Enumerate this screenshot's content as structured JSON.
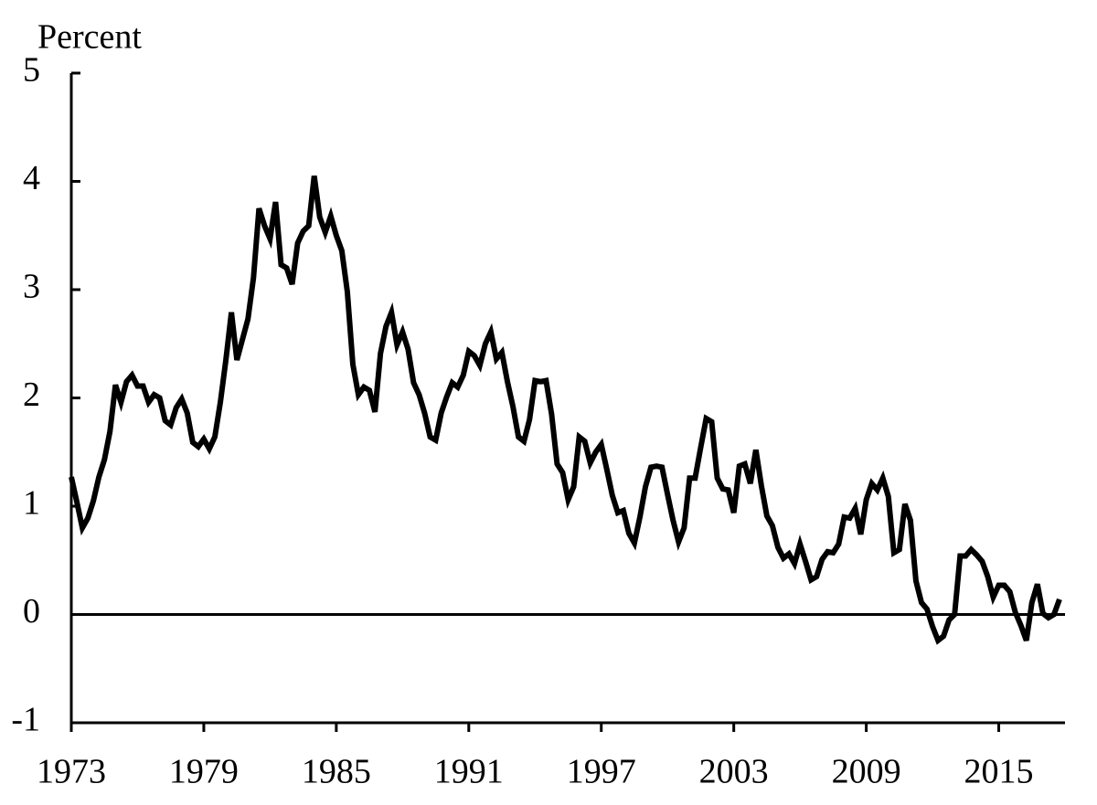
{
  "chart_data": {
    "type": "line",
    "y_label": "Percent",
    "x": [
      1973,
      1973.25,
      1973.5,
      1973.75,
      1974,
      1974.25,
      1974.5,
      1974.75,
      1975,
      1975.25,
      1975.5,
      1975.75,
      1976,
      1976.25,
      1976.5,
      1976.75,
      1977,
      1977.25,
      1977.5,
      1977.75,
      1978,
      1978.25,
      1978.5,
      1978.75,
      1979,
      1979.25,
      1979.5,
      1979.75,
      1980,
      1980.25,
      1980.5,
      1980.75,
      1981,
      1981.25,
      1981.5,
      1981.75,
      1982,
      1982.25,
      1982.5,
      1982.75,
      1983,
      1983.25,
      1983.5,
      1983.75,
      1984,
      1984.25,
      1984.5,
      1984.75,
      1985,
      1985.25,
      1985.5,
      1985.75,
      1986,
      1986.25,
      1986.5,
      1986.75,
      1987,
      1987.25,
      1987.5,
      1987.75,
      1988,
      1988.25,
      1988.5,
      1988.75,
      1989,
      1989.25,
      1989.5,
      1989.75,
      1990,
      1990.25,
      1990.5,
      1990.75,
      1991,
      1991.25,
      1991.5,
      1991.75,
      1992,
      1992.25,
      1992.5,
      1992.75,
      1993,
      1993.25,
      1993.5,
      1993.75,
      1994,
      1994.25,
      1994.5,
      1994.75,
      1995,
      1995.25,
      1995.5,
      1995.75,
      1996,
      1996.25,
      1996.5,
      1996.75,
      1997,
      1997.25,
      1997.5,
      1997.75,
      1998,
      1998.25,
      1998.5,
      1998.75,
      1999,
      1999.25,
      1999.5,
      1999.75,
      2000,
      2000.25,
      2000.5,
      2000.75,
      2001,
      2001.25,
      2001.5,
      2001.75,
      2002,
      2002.25,
      2002.5,
      2002.75,
      2003,
      2003.25,
      2003.5,
      2003.75,
      2004,
      2004.25,
      2004.5,
      2004.75,
      2005,
      2005.25,
      2005.5,
      2005.75,
      2006,
      2006.25,
      2006.5,
      2006.75,
      2007,
      2007.25,
      2007.5,
      2007.75,
      2008,
      2008.25,
      2008.5,
      2008.75,
      2009,
      2009.25,
      2009.5,
      2009.75,
      2010,
      2010.25,
      2010.5,
      2010.75,
      2011,
      2011.25,
      2011.5,
      2011.75,
      2012,
      2012.25,
      2012.5,
      2012.75,
      2013,
      2013.25,
      2013.5,
      2013.75,
      2014,
      2014.25,
      2014.5,
      2014.75,
      2015,
      2015.25,
      2015.5,
      2015.75,
      2016,
      2016.25,
      2016.5,
      2016.75,
      2017,
      2017.25,
      2017.5,
      2017.75
    ],
    "series": [
      {
        "color": "#000000",
        "values": [
          1.27,
          1.04,
          0.8,
          0.89,
          1.05,
          1.27,
          1.43,
          1.69,
          2.12,
          1.96,
          2.15,
          2.21,
          2.11,
          2.11,
          1.96,
          2.03,
          2.0,
          1.79,
          1.75,
          1.91,
          1.99,
          1.86,
          1.59,
          1.55,
          1.62,
          1.53,
          1.64,
          1.96,
          2.35,
          2.79,
          2.35,
          2.54,
          2.73,
          3.11,
          3.75,
          3.59,
          3.47,
          3.81,
          3.23,
          3.2,
          3.05,
          3.43,
          3.54,
          3.59,
          4.05,
          3.67,
          3.53,
          3.68,
          3.5,
          3.36,
          2.98,
          2.31,
          2.03,
          2.1,
          2.07,
          1.87,
          2.41,
          2.66,
          2.79,
          2.49,
          2.61,
          2.45,
          2.14,
          2.03,
          1.86,
          1.64,
          1.61,
          1.86,
          2.01,
          2.14,
          2.1,
          2.21,
          2.43,
          2.39,
          2.3,
          2.5,
          2.61,
          2.36,
          2.42,
          2.15,
          1.92,
          1.64,
          1.6,
          1.8,
          2.16,
          2.15,
          2.16,
          1.85,
          1.39,
          1.31,
          1.06,
          1.18,
          1.64,
          1.6,
          1.4,
          1.5,
          1.57,
          1.34,
          1.1,
          0.94,
          0.96,
          0.75,
          0.66,
          0.9,
          1.18,
          1.36,
          1.37,
          1.36,
          1.11,
          0.87,
          0.67,
          0.8,
          1.26,
          1.26,
          1.54,
          1.81,
          1.78,
          1.26,
          1.16,
          1.15,
          0.94,
          1.37,
          1.39,
          1.21,
          1.52,
          1.19,
          0.91,
          0.82,
          0.62,
          0.52,
          0.56,
          0.47,
          0.65,
          0.49,
          0.32,
          0.35,
          0.51,
          0.58,
          0.57,
          0.65,
          0.9,
          0.89,
          0.98,
          0.74,
          1.06,
          1.21,
          1.15,
          1.26,
          1.09,
          0.57,
          0.6,
          1.02,
          0.87,
          0.31,
          0.11,
          0.05,
          -0.11,
          -0.24,
          -0.2,
          -0.05,
          0.0,
          0.54,
          0.54,
          0.6,
          0.55,
          0.49,
          0.35,
          0.16,
          0.27,
          0.27,
          0.21,
          0.02,
          -0.1,
          -0.24,
          0.11,
          0.28,
          0.01,
          -0.03,
          0.0,
          0.14
        ]
      }
    ],
    "xlim": [
      1973,
      2018
    ],
    "xticks": [
      1973,
      1979,
      1985,
      1991,
      1997,
      2003,
      2009,
      2015
    ],
    "ylim": [
      -1,
      5
    ],
    "yticks": [
      -1,
      0,
      1,
      2,
      3,
      4,
      5
    ],
    "zero_line": true
  }
}
